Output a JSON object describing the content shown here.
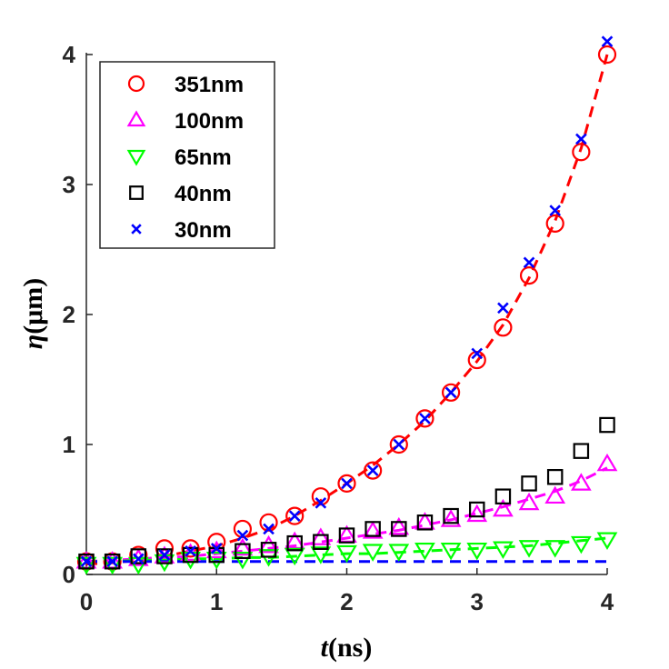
{
  "chart_data": {
    "type": "scatter",
    "title": "",
    "xlabel_italic": "t",
    "xlabel_unit": "(ns)",
    "ylabel_italic": "η",
    "ylabel_unit": "(μm)",
    "xlim": [
      0,
      4
    ],
    "ylim": [
      0,
      4.1
    ],
    "xticks": [
      0,
      1,
      2,
      3,
      4
    ],
    "yticks": [
      0,
      1,
      2,
      3,
      4
    ],
    "grid": false,
    "legend_position": "top-left",
    "series": [
      {
        "name": "351nm",
        "marker": "circle",
        "color": "#ff0000",
        "x": [
          0,
          0.2,
          0.4,
          0.6,
          0.8,
          1.0,
          1.2,
          1.4,
          1.6,
          1.8,
          2.0,
          2.2,
          2.4,
          2.6,
          2.8,
          3.0,
          3.2,
          3.4,
          3.6,
          3.8,
          4.0
        ],
        "y": [
          0.1,
          0.1,
          0.15,
          0.2,
          0.2,
          0.25,
          0.35,
          0.4,
          0.45,
          0.6,
          0.7,
          0.8,
          1.0,
          1.2,
          1.4,
          1.65,
          1.9,
          2.3,
          2.7,
          3.25,
          4.0
        ],
        "fit": {
          "style": "dashed",
          "y": [
            0.08,
            0.09,
            0.11,
            0.14,
            0.18,
            0.22,
            0.28,
            0.35,
            0.45,
            0.57,
            0.7,
            0.84,
            1.0,
            1.18,
            1.4,
            1.64,
            1.92,
            2.28,
            2.72,
            3.28,
            4.0
          ]
        }
      },
      {
        "name": "100nm",
        "marker": "triangle-up",
        "color": "#ff00ff",
        "x": [
          0,
          0.2,
          0.4,
          0.6,
          0.8,
          1.0,
          1.2,
          1.4,
          1.6,
          1.8,
          2.0,
          2.2,
          2.4,
          2.6,
          2.8,
          3.0,
          3.2,
          3.4,
          3.6,
          3.8,
          4.0
        ],
        "y": [
          0.1,
          0.1,
          0.12,
          0.14,
          0.16,
          0.18,
          0.2,
          0.22,
          0.25,
          0.28,
          0.3,
          0.33,
          0.36,
          0.4,
          0.42,
          0.46,
          0.5,
          0.55,
          0.6,
          0.7,
          0.85
        ],
        "fit": {
          "style": "dashed",
          "y": [
            0.1,
            0.11,
            0.12,
            0.13,
            0.14,
            0.16,
            0.18,
            0.2,
            0.22,
            0.25,
            0.28,
            0.31,
            0.34,
            0.38,
            0.42,
            0.47,
            0.52,
            0.58,
            0.64,
            0.72,
            0.82
          ]
        }
      },
      {
        "name": "65nm",
        "marker": "triangle-down",
        "color": "#00ff00",
        "x": [
          0,
          0.2,
          0.4,
          0.6,
          0.8,
          1.0,
          1.2,
          1.4,
          1.6,
          1.8,
          2.0,
          2.2,
          2.4,
          2.6,
          2.8,
          3.0,
          3.2,
          3.4,
          3.6,
          3.8,
          4.0
        ],
        "y": [
          0.08,
          0.08,
          0.08,
          0.1,
          0.12,
          0.12,
          0.12,
          0.14,
          0.15,
          0.16,
          0.17,
          0.18,
          0.18,
          0.19,
          0.19,
          0.19,
          0.2,
          0.21,
          0.21,
          0.24,
          0.27
        ],
        "fit": {
          "style": "dashed",
          "y": [
            0.1,
            0.1,
            0.11,
            0.11,
            0.12,
            0.12,
            0.13,
            0.13,
            0.14,
            0.15,
            0.16,
            0.16,
            0.17,
            0.18,
            0.19,
            0.2,
            0.21,
            0.22,
            0.24,
            0.26,
            0.28
          ]
        }
      },
      {
        "name": "40nm",
        "marker": "square",
        "color": "#000000",
        "x": [
          0,
          0.2,
          0.4,
          0.6,
          0.8,
          1.0,
          1.2,
          1.4,
          1.6,
          1.8,
          2.0,
          2.2,
          2.4,
          2.6,
          2.8,
          3.0,
          3.2,
          3.4,
          3.6,
          3.8,
          4.0
        ],
        "y": [
          0.1,
          0.1,
          0.14,
          0.14,
          0.15,
          0.15,
          0.18,
          0.19,
          0.24,
          0.25,
          0.3,
          0.35,
          0.35,
          0.4,
          0.45,
          0.5,
          0.6,
          0.7,
          0.75,
          0.95,
          1.15
        ],
        "fit": null
      },
      {
        "name": "30nm",
        "marker": "x",
        "color": "#0000ff",
        "x": [
          0,
          0.2,
          0.4,
          0.6,
          0.8,
          1.0,
          1.2,
          1.4,
          1.6,
          1.8,
          2.0,
          2.2,
          2.4,
          2.6,
          2.8,
          3.0,
          3.2,
          3.4,
          3.6,
          3.8,
          4.0
        ],
        "y": [
          0.1,
          0.1,
          0.12,
          0.15,
          0.18,
          0.2,
          0.3,
          0.35,
          0.45,
          0.55,
          0.7,
          0.8,
          1.0,
          1.2,
          1.4,
          1.7,
          2.05,
          2.4,
          2.8,
          3.35,
          4.1
        ],
        "fit": {
          "style": "dashed",
          "y": [
            0.1,
            0.1,
            0.1,
            0.1,
            0.1,
            0.1,
            0.1,
            0.1,
            0.1,
            0.1,
            0.1,
            0.1,
            0.1,
            0.1,
            0.1,
            0.1,
            0.1,
            0.1,
            0.1,
            0.1,
            0.1
          ]
        }
      }
    ]
  }
}
